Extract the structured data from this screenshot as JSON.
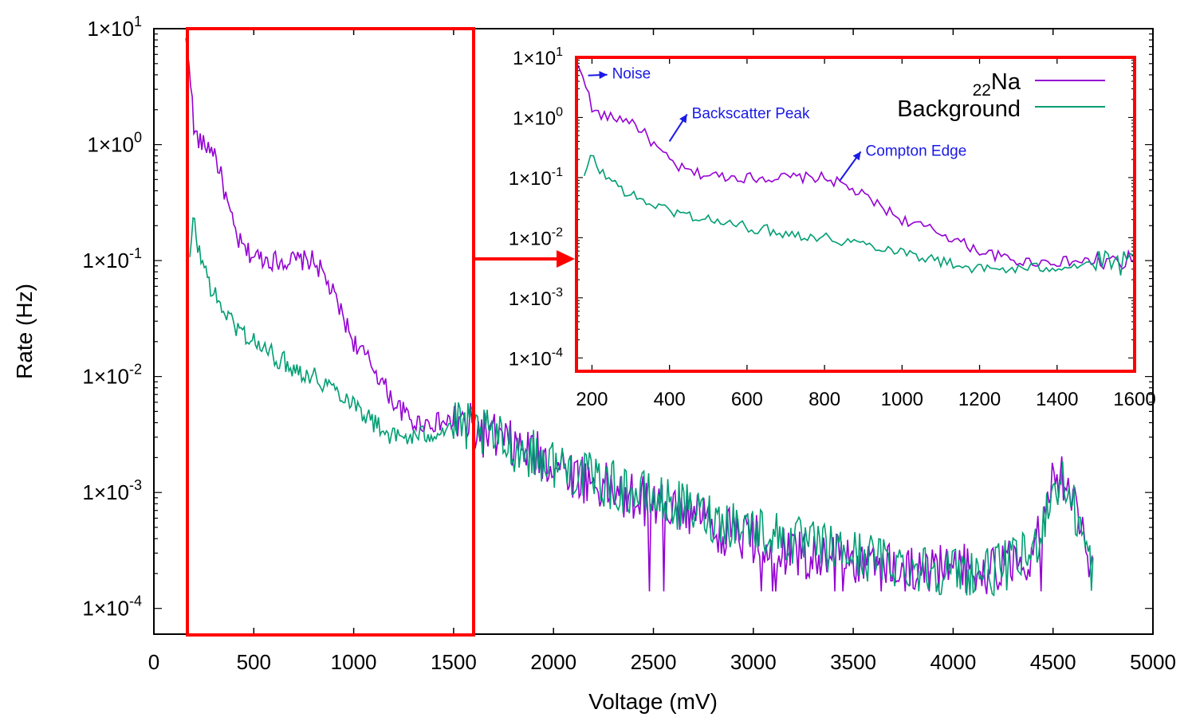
{
  "chart_data": {
    "type": "line",
    "xlabel": "Voltage (mV)",
    "ylabel": "Rate (Hz)",
    "yscale": "log",
    "xlim": [
      0,
      5000
    ],
    "ylim": [
      6e-05,
      10
    ],
    "xticks": [
      "0",
      "500",
      "1000",
      "1500",
      "2000",
      "2500",
      "3000",
      "3500",
      "4000",
      "4500",
      "5000"
    ],
    "yticks": [
      {
        "value": 10,
        "mant": "1×10",
        "exp": "1"
      },
      {
        "value": 1,
        "mant": "1×10",
        "exp": "0"
      },
      {
        "value": 0.1,
        "mant": "1×10",
        "exp": "-1"
      },
      {
        "value": 0.01,
        "mant": "1×10",
        "exp": "-2"
      },
      {
        "value": 0.001,
        "mant": "1×10",
        "exp": "-3"
      },
      {
        "value": 0.0001,
        "mant": "1×10",
        "exp": "-4"
      }
    ],
    "grid": false,
    "legend_position": "top-right (inside inset)",
    "series": [
      {
        "name": "22Na",
        "legend_sub": "22",
        "legend_main": "Na",
        "color": "#9400d3",
        "x": [
          160,
          180,
          200,
          240,
          280,
          300,
          340,
          380,
          420,
          460,
          500,
          600,
          700,
          800,
          840,
          900,
          1000,
          1100,
          1200,
          1300,
          1400,
          1500,
          1600,
          1800,
          2000,
          2200,
          2400,
          2600,
          2800,
          3000,
          3200,
          3400,
          3600,
          3800,
          4000,
          4200,
          4400,
          4500,
          4550,
          4600,
          4700
        ],
        "y": [
          7.5,
          5,
          1.3,
          1,
          0.95,
          0.9,
          0.5,
          0.25,
          0.15,
          0.12,
          0.11,
          0.1,
          0.1,
          0.1,
          0.08,
          0.05,
          0.02,
          0.012,
          0.006,
          0.004,
          0.004,
          0.004,
          0.0035,
          0.0025,
          0.0018,
          0.0012,
          0.0009,
          0.0007,
          0.0005,
          0.0004,
          0.0003,
          0.00028,
          0.00025,
          0.00022,
          0.00022,
          0.00022,
          0.0003,
          0.0012,
          0.0013,
          0.0008,
          0.0002
        ]
      },
      {
        "name": "Background",
        "color": "#009e73",
        "x": [
          180,
          200,
          220,
          260,
          300,
          400,
          500,
          600,
          700,
          800,
          900,
          1000,
          1100,
          1200,
          1300,
          1400,
          1500,
          1600,
          1800,
          2000,
          2200,
          2400,
          2600,
          2800,
          3000,
          3200,
          3400,
          3600,
          3800,
          4000,
          4200,
          4400,
          4500,
          4550,
          4600,
          4700
        ],
        "y": [
          0.1,
          0.24,
          0.13,
          0.08,
          0.05,
          0.028,
          0.02,
          0.015,
          0.012,
          0.01,
          0.008,
          0.006,
          0.004,
          0.003,
          0.003,
          0.0033,
          0.0038,
          0.0035,
          0.0025,
          0.0018,
          0.0013,
          0.001,
          0.0008,
          0.0006,
          0.0005,
          0.00038,
          0.00032,
          0.00027,
          0.00023,
          0.00021,
          0.00021,
          0.0003,
          0.0011,
          0.0012,
          0.0008,
          0.0002
        ]
      }
    ],
    "inset": {
      "xlim": [
        160,
        1600
      ],
      "ylim": [
        6e-05,
        10
      ],
      "xticks": [
        "200",
        "400",
        "600",
        "800",
        "1000",
        "1200",
        "1400",
        "1600"
      ],
      "annotations": [
        {
          "text": "Noise",
          "x": 190,
          "y": 5
        },
        {
          "text": "Backscatter Peak",
          "x": 400,
          "y": 0.4
        },
        {
          "text": "Compton Edge",
          "x": 840,
          "y": 0.09
        }
      ]
    }
  }
}
